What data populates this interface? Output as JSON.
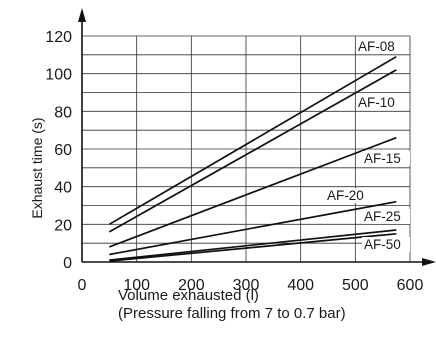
{
  "chart_data": {
    "type": "line",
    "xlabel_line1": "Volume exhausted (l)",
    "xlabel_line2": "(Pressure falling from 7 to 0.7 bar)",
    "ylabel": "Exhaust time (s)",
    "xlim": [
      0,
      600
    ],
    "ylim": [
      0,
      120
    ],
    "x_ticks": [
      0,
      100,
      200,
      300,
      400,
      500,
      600
    ],
    "y_ticks": [
      0,
      20,
      40,
      60,
      80,
      100,
      120
    ],
    "grid": true,
    "series": [
      {
        "name": "AF-08",
        "points": [
          [
            50,
            20
          ],
          [
            575,
            109
          ]
        ]
      },
      {
        "name": "AF-10",
        "points": [
          [
            50,
            16
          ],
          [
            575,
            102
          ]
        ]
      },
      {
        "name": "AF-15",
        "points": [
          [
            50,
            8
          ],
          [
            575,
            66
          ]
        ]
      },
      {
        "name": "AF-20",
        "points": [
          [
            50,
            4
          ],
          [
            575,
            32
          ]
        ]
      },
      {
        "name": "AF-25",
        "points": [
          [
            50,
            1
          ],
          [
            575,
            17
          ]
        ]
      },
      {
        "name": "AF-50",
        "points": [
          [
            50,
            0.5
          ],
          [
            575,
            15
          ]
        ]
      }
    ]
  }
}
